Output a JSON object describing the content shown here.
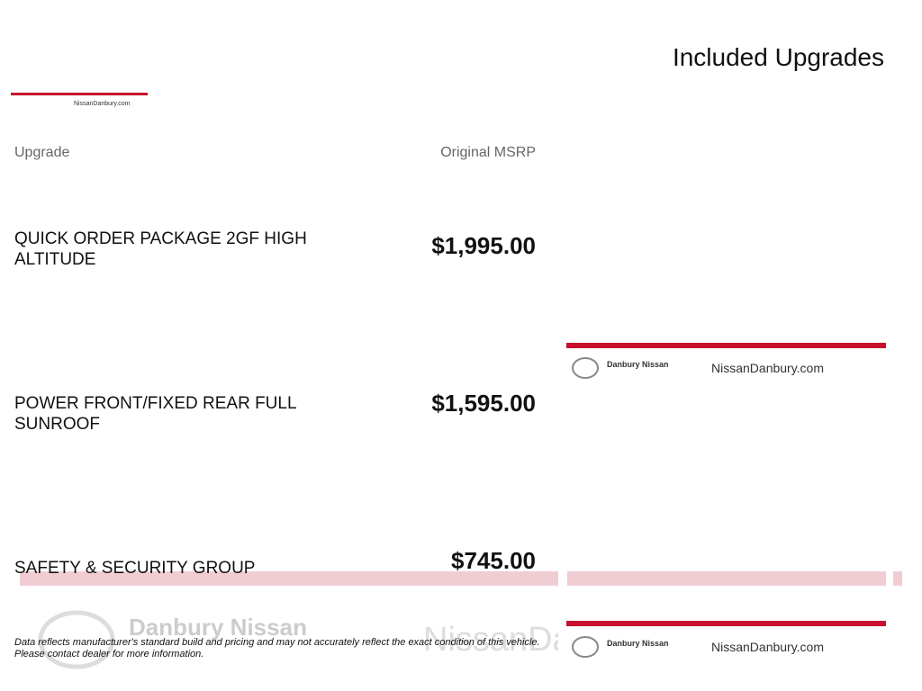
{
  "header": {
    "title": "Included Upgrades"
  },
  "table": {
    "columns": [
      "Upgrade",
      "Original MSRP"
    ],
    "rows": [
      [
        "QUICK ORDER PACKAGE 2GF HIGH ALTITUDE",
        "$1,995.00"
      ],
      [
        "POWER FRONT/FIXED REAR FULL SUNROOF",
        "$1,595.00"
      ],
      [
        "SAFETY & SECURITY GROUP",
        "$745.00"
      ]
    ]
  },
  "footer": {
    "note": [
      "Data reflects manufacturer's standard build and pricing and may not accurately reflect the exact condition of this vehicle.",
      "Please contact dealer for more information."
    ]
  }
}
